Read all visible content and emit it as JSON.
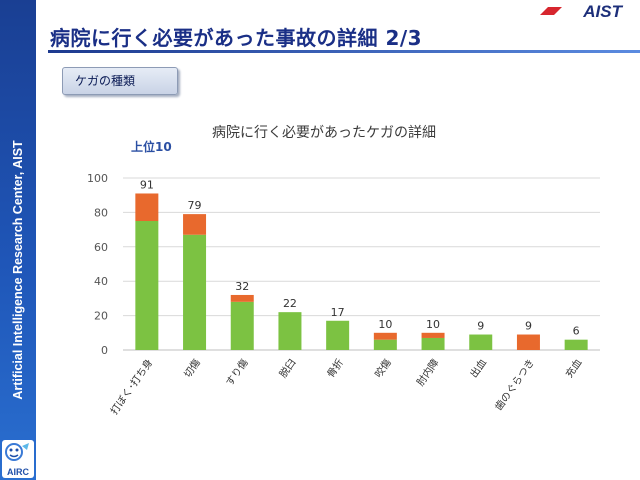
{
  "sidebar": {
    "org": "Artificial Intelligence Research Center, AIST",
    "logo": "AIRC"
  },
  "header": {
    "title": "病院に行く必要があった事故の詳細 2/3",
    "brand": "AIST"
  },
  "category_label": "ケガの種類",
  "chart_data": {
    "type": "bar",
    "stacked": true,
    "title": "病院に行く必要があったケガの詳細",
    "annotation": "上位10",
    "categories": [
      "打ぼく･打ち身",
      "切傷",
      "すり傷",
      "脱臼",
      "骨折",
      "咬傷",
      "肘内障",
      "出血",
      "歯のぐらつき",
      "充血"
    ],
    "totals": [
      91,
      79,
      32,
      22,
      17,
      10,
      10,
      9,
      9,
      6
    ],
    "series": [
      {
        "values": [
          75,
          67,
          28,
          22,
          17,
          6,
          7,
          9,
          0,
          6
        ],
        "color": "#7cc242"
      },
      {
        "values": [
          16,
          12,
          4,
          0,
          0,
          4,
          3,
          0,
          9,
          0
        ],
        "color": "#e8692d"
      }
    ],
    "ylim": [
      0,
      100
    ],
    "yticks": [
      0,
      20,
      40,
      60,
      80,
      100
    ],
    "grid": true
  }
}
